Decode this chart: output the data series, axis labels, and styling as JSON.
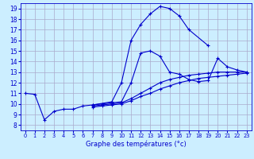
{
  "title": "Graphe des températures (°c)",
  "background_color": "#cceeff",
  "grid_color": "#aaaacc",
  "line_color": "#0000cc",
  "curve1_x": [
    0,
    1,
    2,
    3,
    4,
    5,
    6,
    7,
    9,
    10,
    11,
    12,
    13,
    14,
    15,
    16,
    17,
    19
  ],
  "curve1_y": [
    11.0,
    10.9,
    8.5,
    9.3,
    9.5,
    9.5,
    9.8,
    9.9,
    10.2,
    12.0,
    16.0,
    17.5,
    18.5,
    19.2,
    19.0,
    18.3,
    17.0,
    15.5
  ],
  "curve2_x": [
    7,
    8,
    9,
    10,
    11,
    12,
    13,
    14,
    15,
    16,
    17,
    18,
    19,
    20,
    21,
    22,
    23
  ],
  "curve2_y": [
    9.9,
    10.0,
    10.1,
    10.2,
    12.0,
    14.8,
    15.0,
    14.5,
    13.0,
    12.8,
    12.3,
    12.1,
    12.2,
    14.3,
    13.5,
    13.2,
    13.0
  ],
  "curve3_x": [
    7,
    8,
    9,
    10,
    11,
    12,
    13,
    14,
    15,
    16,
    17,
    18,
    19,
    20,
    21,
    22,
    23
  ],
  "curve3_y": [
    9.8,
    9.9,
    10.0,
    10.1,
    10.5,
    11.0,
    11.5,
    12.0,
    12.3,
    12.5,
    12.7,
    12.8,
    12.9,
    13.0,
    13.0,
    13.0,
    13.0
  ],
  "curve4_x": [
    7,
    8,
    9,
    10,
    11,
    12,
    13,
    14,
    15,
    16,
    17,
    18,
    19,
    20,
    21,
    22,
    23
  ],
  "curve4_y": [
    9.7,
    9.8,
    9.9,
    10.0,
    10.3,
    10.7,
    11.0,
    11.4,
    11.7,
    12.0,
    12.2,
    12.4,
    12.5,
    12.6,
    12.7,
    12.8,
    12.9
  ],
  "xlim": [
    -0.5,
    23.5
  ],
  "ylim": [
    7.5,
    19.5
  ],
  "yticks": [
    8,
    9,
    10,
    11,
    12,
    13,
    14,
    15,
    16,
    17,
    18,
    19
  ],
  "xticks": [
    0,
    1,
    2,
    3,
    4,
    5,
    6,
    7,
    8,
    9,
    10,
    11,
    12,
    13,
    14,
    15,
    16,
    17,
    18,
    19,
    20,
    21,
    22,
    23
  ]
}
